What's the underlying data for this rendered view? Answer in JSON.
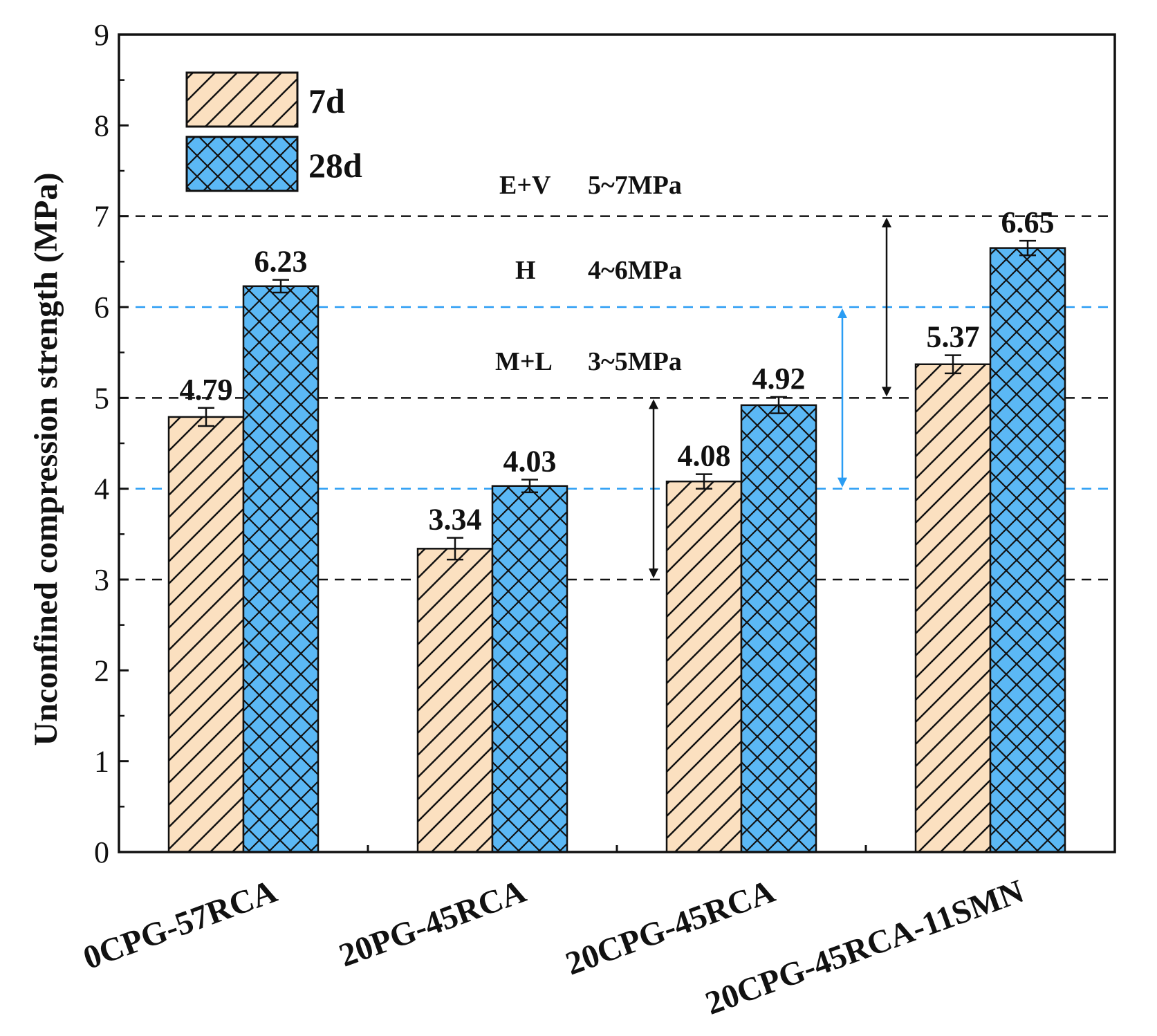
{
  "chart_data": {
    "type": "bar",
    "title": "",
    "xlabel": "",
    "ylabel": "Unconfined compression strength (MPa)",
    "ylim": [
      0,
      9
    ],
    "yticks": [
      "0",
      "1",
      "2",
      "3",
      "4",
      "5",
      "6",
      "7",
      "8",
      "9"
    ],
    "categories": [
      "0CPG-57RCA",
      "20PG-45RCA",
      "20CPG-45RCA",
      "20CPG-45RCA-11SMN"
    ],
    "series": [
      {
        "name": "7d",
        "values": [
          4.79,
          3.34,
          4.08,
          5.37
        ],
        "labels": [
          "4.79",
          "3.34",
          "4.08",
          "5.37"
        ],
        "errors": [
          0.1,
          0.12,
          0.08,
          0.1
        ],
        "color": "#fbe0c0",
        "pattern": "diagonal-hatch"
      },
      {
        "name": "28d",
        "values": [
          6.23,
          4.03,
          4.92,
          6.65
        ],
        "labels": [
          "6.23",
          "4.03",
          "4.92",
          "6.65"
        ],
        "errors": [
          0.07,
          0.07,
          0.09,
          0.08
        ],
        "color": "#5bb8f5",
        "pattern": "cross-hatch"
      }
    ],
    "reference_lines": [
      {
        "y": 7,
        "color": "#111111",
        "style": "dashed"
      },
      {
        "y": 6,
        "color": "#2a9df4",
        "style": "dashed"
      },
      {
        "y": 5,
        "color": "#111111",
        "style": "dashed"
      },
      {
        "y": 4,
        "color": "#2a9df4",
        "style": "dashed"
      },
      {
        "y": 3,
        "color": "#111111",
        "style": "dashed"
      }
    ],
    "range_arrows": [
      {
        "from": 5,
        "to": 7,
        "color": "#111111"
      },
      {
        "from": 4,
        "to": 6,
        "color": "#2a9df4"
      },
      {
        "from": 3,
        "to": 5,
        "color": "#111111"
      }
    ],
    "bands": [
      {
        "name": "E+V",
        "range": "5~7MPa"
      },
      {
        "name": "H",
        "range": "4~6MPa"
      },
      {
        "name": "M+L",
        "range": "3~5MPa"
      }
    ],
    "legend_position": "top-left",
    "grid": false
  }
}
